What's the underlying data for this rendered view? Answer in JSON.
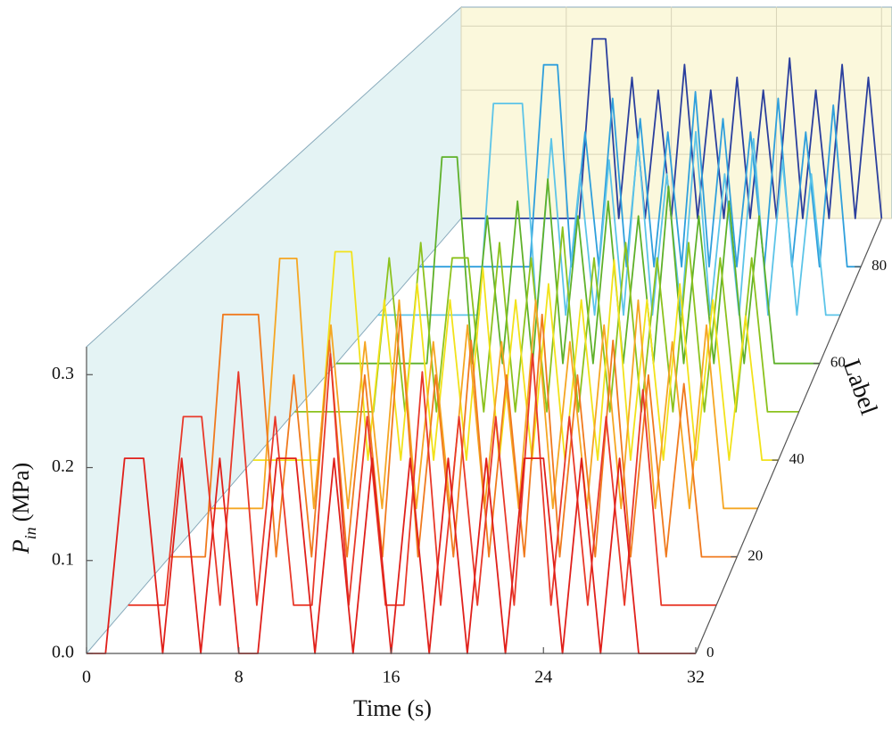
{
  "chart_data": {
    "type": "waterfall3d",
    "xlabel": "Time (s)",
    "ylabel": {
      "symbol": "P",
      "subscript": "in",
      "unit": "(MPa)"
    },
    "zlabel": "Label",
    "x": [
      0,
      1,
      2,
      3,
      4,
      5,
      6,
      7,
      8,
      9,
      10,
      11,
      12,
      13,
      14,
      15,
      16,
      17,
      18,
      19,
      20,
      21,
      22,
      23,
      24,
      25,
      26,
      27,
      28,
      29,
      30,
      31,
      32
    ],
    "xlim": [
      0,
      32
    ],
    "xticks": [
      0,
      8,
      16,
      24,
      32
    ],
    "ylim": [
      0,
      0.33
    ],
    "yticks": [
      {
        "value": 0,
        "label": "0.0"
      },
      0.1,
      0.2,
      0.3
    ],
    "zlim": [
      0,
      90
    ],
    "zticks": [
      0,
      20,
      40,
      60,
      80
    ],
    "grid": true,
    "series": [
      {
        "z": 0,
        "color": "#e0201b",
        "values": [
          0,
          0,
          0.21,
          0.21,
          0,
          0.21,
          0,
          0.21,
          0,
          0,
          0.21,
          0.21,
          0,
          0.21,
          0,
          0.21,
          0,
          0.21,
          0,
          0.21,
          0,
          0.21,
          0,
          0.21,
          0.21,
          0,
          0.21,
          0,
          0.21,
          0,
          0,
          0,
          0
        ]
      },
      {
        "z": 10,
        "color": "#e8392a",
        "values": [
          0,
          0,
          0,
          0.21,
          0.21,
          0,
          0.26,
          0,
          0.21,
          0,
          0,
          0.28,
          0,
          0.21,
          0,
          0,
          0.26,
          0,
          0.21,
          0,
          0.21,
          0,
          0.28,
          0,
          0.21,
          0,
          0.21,
          0,
          0.24,
          0,
          0,
          0,
          0
        ]
      },
      {
        "z": 20,
        "color": "#f07a1e",
        "values": [
          0,
          0,
          0,
          0.28,
          0.28,
          0.28,
          0,
          0.21,
          0,
          0.25,
          0,
          0.21,
          0,
          0.28,
          0,
          0.21,
          0,
          0.25,
          0,
          0.21,
          0,
          0.28,
          0,
          0.21,
          0,
          0.25,
          0,
          0.21,
          0,
          0.2,
          0,
          0,
          0
        ]
      },
      {
        "z": 30,
        "color": "#f5a623",
        "values": [
          0,
          0,
          0,
          0,
          0.3,
          0.3,
          0,
          0.22,
          0,
          0.2,
          0,
          0.25,
          0,
          0.2,
          0,
          0.22,
          0,
          0.2,
          0,
          0.25,
          0,
          0.2,
          0,
          0.22,
          0,
          0.25,
          0,
          0.2,
          0,
          0.22,
          0,
          0,
          0
        ]
      },
      {
        "z": 40,
        "color": "#f2e21a",
        "values": [
          0,
          0,
          0,
          0,
          0,
          0.26,
          0.26,
          0,
          0.2,
          0,
          0.22,
          0,
          0.2,
          0,
          0.24,
          0,
          0.2,
          0,
          0.22,
          0,
          0.2,
          0,
          0.25,
          0,
          0.2,
          0,
          0.22,
          0,
          0.2,
          0,
          0.18,
          0,
          0
        ]
      },
      {
        "z": 50,
        "color": "#8cc21e",
        "values": [
          0,
          0,
          0,
          0,
          0,
          0,
          0.2,
          0,
          0.22,
          0,
          0.2,
          0.2,
          0,
          0.22,
          0,
          0.2,
          0,
          0.24,
          0,
          0.2,
          0,
          0.22,
          0,
          0.2,
          0,
          0.22,
          0,
          0.2,
          0,
          0.2,
          0,
          0,
          0
        ]
      },
      {
        "z": 60,
        "color": "#5fb12a",
        "values": [
          0,
          0,
          0,
          0,
          0,
          0,
          0,
          0.28,
          0.28,
          0,
          0.2,
          0,
          0.22,
          0,
          0.25,
          0,
          0.2,
          0,
          0.22,
          0,
          0.2,
          0,
          0.24,
          0,
          0.2,
          0,
          0.22,
          0,
          0.2,
          0,
          0,
          0,
          0
        ]
      },
      {
        "z": 70,
        "color": "#5cc4e8",
        "values": [
          0,
          0,
          0,
          0,
          0,
          0,
          0,
          0,
          0.3,
          0.3,
          0.3,
          0,
          0.25,
          0,
          0.2,
          0,
          0.22,
          0,
          0.25,
          0,
          0.2,
          0,
          0.26,
          0,
          0.2,
          0,
          0.25,
          0,
          0.22,
          0,
          0.2,
          0,
          0
        ]
      },
      {
        "z": 80,
        "color": "#2f9fdc",
        "values": [
          0,
          0,
          0,
          0,
          0,
          0,
          0,
          0,
          0,
          0.3,
          0.3,
          0,
          0.2,
          0,
          0.25,
          0,
          0.22,
          0,
          0.2,
          0,
          0.26,
          0,
          0.22,
          0,
          0.2,
          0,
          0.25,
          0,
          0.2,
          0,
          0.24,
          0,
          0
        ]
      },
      {
        "z": 90,
        "color": "#2b3f9e",
        "values": [
          0,
          0,
          0,
          0,
          0,
          0,
          0,
          0,
          0,
          0,
          0.28,
          0.28,
          0,
          0.22,
          0,
          0.2,
          0,
          0.24,
          0,
          0.2,
          0,
          0.22,
          0,
          0.2,
          0,
          0.25,
          0,
          0.2,
          0,
          0.24,
          0,
          0.22,
          0
        ]
      }
    ]
  }
}
